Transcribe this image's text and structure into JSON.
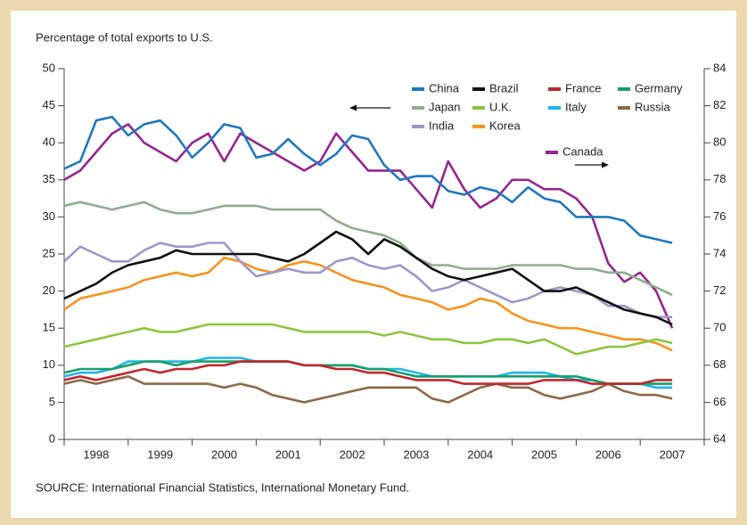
{
  "chart_data": {
    "type": "line",
    "y_label": "Percentage of total exports to U.S.",
    "source": "SOURCE: International Financial Statistics, International Monetary Fund.",
    "x": [
      1998,
      1998.25,
      1998.5,
      1998.75,
      1999,
      1999.25,
      1999.5,
      1999.75,
      2000,
      2000.25,
      2000.5,
      2000.75,
      2001,
      2001.25,
      2001.5,
      2001.75,
      2002,
      2002.25,
      2002.5,
      2002.75,
      2003,
      2003.25,
      2003.5,
      2003.75,
      2004,
      2004.25,
      2004.5,
      2004.75,
      2005,
      2005.25,
      2005.5,
      2005.75,
      2006,
      2006.25,
      2006.5,
      2006.75,
      2007,
      2007.25,
      2007.5
    ],
    "xlim": [
      1998,
      2008
    ],
    "xticks": [
      {
        "value": 1998.5,
        "label": "1998"
      },
      {
        "value": 1999.5,
        "label": "1999"
      },
      {
        "value": 2000.5,
        "label": "2000"
      },
      {
        "value": 2001.5,
        "label": "2001"
      },
      {
        "value": 2002.5,
        "label": "2002"
      },
      {
        "value": 2003.5,
        "label": "2003"
      },
      {
        "value": 2004.5,
        "label": "2004"
      },
      {
        "value": 2005.5,
        "label": "2005"
      },
      {
        "value": 2006.5,
        "label": "2006"
      },
      {
        "value": 2007.5,
        "label": "2007"
      }
    ],
    "ylim": [
      0,
      50
    ],
    "yticks": [
      0,
      5,
      10,
      15,
      20,
      25,
      30,
      35,
      40,
      45,
      50
    ],
    "y2lim": [
      64,
      84
    ],
    "y2ticks": [
      64,
      66,
      68,
      70,
      72,
      74,
      76,
      78,
      80,
      82,
      84
    ],
    "series": [
      {
        "name": "China",
        "color": "#1f78bf",
        "values": [
          36.5,
          37.5,
          43,
          43.5,
          41,
          42.5,
          43,
          41,
          38,
          40,
          42.5,
          42,
          38,
          38.5,
          40.5,
          38.5,
          37,
          38.5,
          41,
          40.5,
          37,
          35,
          35.5,
          35.5,
          33.5,
          33,
          34,
          33.5,
          32,
          34,
          32.5,
          32,
          30,
          30,
          30,
          29.5,
          27.5,
          27,
          26.5
        ]
      },
      {
        "name": "Brazil",
        "color": "#111111",
        "values": [
          19,
          20,
          21,
          22.5,
          23.5,
          24,
          24.5,
          25.5,
          25,
          25,
          25,
          25,
          25,
          24.5,
          24,
          25,
          26.5,
          28,
          27,
          25,
          27,
          26,
          24.5,
          23,
          22,
          21.5,
          22,
          22.5,
          23,
          21.5,
          20,
          20,
          20.5,
          19.5,
          18.5,
          17.5,
          17,
          16.5,
          15.5
        ]
      },
      {
        "name": "France",
        "color": "#c1272d",
        "values": [
          8,
          8.5,
          8,
          8.5,
          9,
          9.5,
          9,
          9.5,
          9.5,
          10,
          10,
          10.5,
          10.5,
          10.5,
          10.5,
          10,
          10,
          9.5,
          9.5,
          9,
          9,
          8.5,
          8,
          8,
          8,
          7.5,
          7.5,
          7.5,
          7.5,
          7.5,
          8,
          8,
          8,
          7.5,
          7.5,
          7.5,
          7.5,
          8,
          8
        ]
      },
      {
        "name": "Germany",
        "color": "#17a06c",
        "values": [
          9,
          9.5,
          9.5,
          9.5,
          10,
          10.5,
          10.5,
          10,
          10.5,
          10.5,
          10.5,
          10.5,
          10.5,
          10.5,
          10.5,
          10,
          10,
          10,
          10,
          9.5,
          9.5,
          9,
          8.5,
          8.5,
          8.5,
          8.5,
          8.5,
          8.5,
          8.5,
          8.5,
          8.5,
          8.5,
          8.5,
          8,
          7.5,
          7.5,
          7.5,
          7.5,
          7.5
        ]
      },
      {
        "name": "Japan",
        "color": "#8fae8c",
        "values": [
          31.5,
          32,
          31.5,
          31,
          31.5,
          32,
          31,
          30.5,
          30.5,
          31,
          31.5,
          31.5,
          31.5,
          31,
          31,
          31,
          31,
          29.5,
          28.5,
          28,
          27.5,
          26.5,
          24.5,
          23.5,
          23.5,
          23,
          23,
          23,
          23.5,
          23.5,
          23.5,
          23.5,
          23,
          23,
          22.5,
          22.5,
          21.5,
          20.5,
          19.5
        ]
      },
      {
        "name": "U.K.",
        "color": "#8dc63f",
        "values": [
          12.5,
          13,
          13.5,
          14,
          14.5,
          15,
          14.5,
          14.5,
          15,
          15.5,
          15.5,
          15.5,
          15.5,
          15.5,
          15,
          14.5,
          14.5,
          14.5,
          14.5,
          14.5,
          14,
          14.5,
          14,
          13.5,
          13.5,
          13,
          13,
          13.5,
          13.5,
          13,
          13.5,
          12.5,
          11.5,
          12,
          12.5,
          12.5,
          13,
          13.5,
          13
        ]
      },
      {
        "name": "Italy",
        "color": "#22b5e8",
        "values": [
          8.5,
          9,
          9,
          9.5,
          10.5,
          10.5,
          10.5,
          10.5,
          10.5,
          11,
          11,
          11,
          10.5,
          10.5,
          10.5,
          10,
          10,
          10,
          10,
          9.5,
          9.5,
          9.5,
          9,
          8.5,
          8.5,
          8.5,
          8.5,
          8.5,
          9,
          9,
          9,
          8.5,
          8,
          8,
          7.5,
          7.5,
          7.5,
          7,
          7
        ]
      },
      {
        "name": "Russia",
        "color": "#8c6a48",
        "values": [
          7.5,
          8,
          7.5,
          8,
          8.5,
          7.5,
          7.5,
          7.5,
          7.5,
          7.5,
          7,
          7.5,
          7,
          6,
          5.5,
          5,
          5.5,
          6,
          6.5,
          7,
          7,
          7,
          7,
          5.5,
          5,
          6,
          7,
          7.5,
          7,
          7,
          6,
          5.5,
          6,
          6.5,
          7.5,
          6.5,
          6,
          6,
          5.5
        ]
      },
      {
        "name": "India",
        "color": "#9c98c9",
        "values": [
          24,
          26,
          25,
          24,
          24,
          25.5,
          26.5,
          26,
          26,
          26.5,
          26.5,
          24,
          22,
          22.5,
          23,
          22.5,
          22.5,
          24,
          24.5,
          23.5,
          23,
          23.5,
          22,
          20,
          20.5,
          21.5,
          20.5,
          19.5,
          18.5,
          19,
          20,
          20.5,
          20,
          19.5,
          18,
          18,
          17,
          16.5,
          16.5
        ]
      },
      {
        "name": "Korea",
        "color": "#f7941d",
        "values": [
          17.5,
          19,
          19.5,
          20,
          20.5,
          21.5,
          22,
          22.5,
          22,
          22.5,
          24.5,
          24,
          23,
          22.5,
          23.5,
          24,
          23.5,
          22.5,
          21.5,
          21,
          20.5,
          19.5,
          19,
          18.5,
          17.5,
          18,
          19,
          18.5,
          17,
          16,
          15.5,
          15,
          15,
          14.5,
          14,
          13.5,
          13.5,
          13,
          12
        ]
      },
      {
        "name": "Canada",
        "color": "#93278f",
        "axis": "y2",
        "values": [
          78,
          78.5,
          79.5,
          80.5,
          81,
          80,
          79.5,
          79,
          80,
          80.5,
          79,
          80.5,
          80,
          79.5,
          79,
          78.5,
          79,
          80.5,
          79.5,
          78.5,
          78.5,
          78.5,
          77.5,
          76.5,
          79,
          77.5,
          76.5,
          77,
          78,
          78,
          77.5,
          77.5,
          77,
          76,
          73.5,
          72.5,
          73,
          72,
          70
        ]
      }
    ]
  }
}
